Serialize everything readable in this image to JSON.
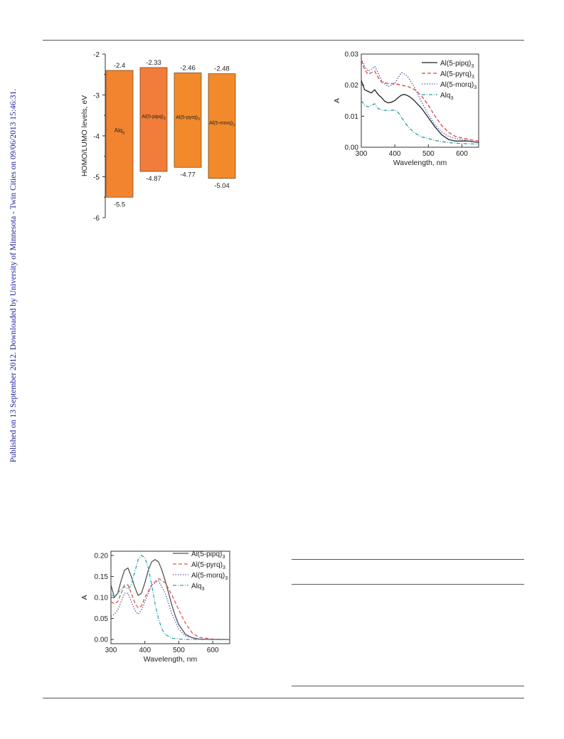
{
  "sidebar_text": "Published on 13 September 2012. Downloaded by University of Minnesota - Twin Cities on 09/06/2013 15:46:31.",
  "chart_data": [
    {
      "type": "bar",
      "ylabel": "HOMO/LUMO levels, eV",
      "ylim": [
        -6,
        -2
      ],
      "yticks": [
        "-2",
        "-3",
        "-4",
        "-5",
        "-6"
      ],
      "categories": [
        "Alq3",
        "Al(5-pipq)3",
        "Al(5-pyrq)3",
        "Al(5-morq)3"
      ],
      "bar_labels": [
        {
          "main": "Alq",
          "sub": "3"
        },
        {
          "main": "Al(5-pipq)",
          "sub": "3"
        },
        {
          "main": "Al(5-pyrq)",
          "sub": "3"
        },
        {
          "main": "Al(5-morq)",
          "sub": "3"
        }
      ],
      "lumo": [
        -2.4,
        -2.33,
        -2.46,
        -2.48
      ],
      "homo": [
        -5.5,
        -4.87,
        -4.77,
        -5.04
      ],
      "lumo_labels": [
        "-2.4",
        "-2.33",
        "-2.46",
        "-2.48"
      ],
      "homo_labels": [
        "-5.5",
        "-4.87",
        "-4.77",
        "-5.04"
      ],
      "colors": [
        "#f28430",
        "#f27d3a",
        "#f28a2c",
        "#f28a2c"
      ]
    },
    {
      "type": "line",
      "xlabel": "Wavelength, nm",
      "ylabel": "A",
      "xlim": [
        300,
        650
      ],
      "ylim": [
        0,
        0.03
      ],
      "xticks": [
        "300",
        "400",
        "500",
        "600"
      ],
      "yticks": [
        "0.00",
        "0.01",
        "0.02",
        "0.03"
      ],
      "legend_position": "top-right",
      "series": [
        {
          "name": "Al(5-pipq)",
          "sub": "3",
          "color": "#222222",
          "dash": "",
          "x": [
            300,
            310,
            320,
            330,
            340,
            350,
            360,
            370,
            380,
            390,
            400,
            410,
            420,
            430,
            440,
            450,
            460,
            480,
            500,
            520,
            540,
            560,
            580,
            600,
            620,
            650
          ],
          "y": [
            0.0215,
            0.0185,
            0.018,
            0.0175,
            0.0185,
            0.017,
            0.016,
            0.0148,
            0.0143,
            0.0145,
            0.015,
            0.016,
            0.0168,
            0.017,
            0.0165,
            0.0158,
            0.0148,
            0.0125,
            0.0095,
            0.0065,
            0.004,
            0.0025,
            0.002,
            0.002,
            0.002,
            0.0015
          ]
        },
        {
          "name": "Al(5-pyrq)",
          "sub": "3",
          "color": "#e0423a",
          "dash": "5,3",
          "x": [
            300,
            310,
            320,
            330,
            340,
            350,
            360,
            380,
            400,
            420,
            440,
            460,
            480,
            500,
            520,
            540,
            560,
            580,
            600,
            620,
            650
          ],
          "y": [
            0.028,
            0.025,
            0.0235,
            0.024,
            0.0245,
            0.0225,
            0.021,
            0.0205,
            0.0205,
            0.02,
            0.0195,
            0.0185,
            0.0165,
            0.0135,
            0.01,
            0.007,
            0.0048,
            0.0035,
            0.003,
            0.0025,
            0.002
          ]
        },
        {
          "name": "Al(5-morq)",
          "sub": "3",
          "color": "#5a58b0",
          "dash": "1.5,2",
          "x": [
            300,
            310,
            320,
            330,
            340,
            350,
            360,
            380,
            400,
            410,
            420,
            430,
            440,
            460,
            480,
            500,
            520,
            540,
            560,
            580,
            600,
            620,
            650
          ],
          "y": [
            0.0285,
            0.026,
            0.0245,
            0.025,
            0.026,
            0.024,
            0.0215,
            0.0195,
            0.0205,
            0.0225,
            0.024,
            0.0235,
            0.0225,
            0.019,
            0.0145,
            0.0105,
            0.0072,
            0.005,
            0.0035,
            0.0028,
            0.0025,
            0.002,
            0.0015
          ]
        },
        {
          "name": "Alq",
          "sub": "3",
          "color": "#2a9a9a",
          "dash": "5,2,1,2",
          "x": [
            300,
            310,
            320,
            330,
            340,
            350,
            360,
            380,
            400,
            410,
            420,
            440,
            460,
            480,
            500,
            520,
            540,
            560,
            600,
            650
          ],
          "y": [
            0.015,
            0.0135,
            0.013,
            0.0135,
            0.014,
            0.0125,
            0.012,
            0.0118,
            0.012,
            0.0112,
            0.0095,
            0.0065,
            0.0045,
            0.0033,
            0.0028,
            0.0022,
            0.0018,
            0.0015,
            0.0012,
            0.001
          ]
        }
      ]
    },
    {
      "type": "line",
      "xlabel": "Wavelength, nm",
      "ylabel": "A",
      "xlim": [
        300,
        650
      ],
      "ylim": [
        -0.01,
        0.21
      ],
      "xticks": [
        "300",
        "400",
        "500",
        "600"
      ],
      "yticks": [
        "0.00",
        "0.05",
        "0.10",
        "0.15",
        "0.20"
      ],
      "legend_position": "top-right",
      "series": [
        {
          "name": "Al(5-pipq)",
          "sub": "3",
          "color": "#555555",
          "dash": "",
          "x": [
            300,
            310,
            320,
            330,
            340,
            350,
            360,
            370,
            380,
            390,
            400,
            410,
            420,
            430,
            440,
            450,
            460,
            470,
            480,
            490,
            500,
            520,
            540,
            560,
            600,
            650
          ],
          "y": [
            0.13,
            0.1,
            0.11,
            0.14,
            0.165,
            0.17,
            0.15,
            0.125,
            0.105,
            0.11,
            0.135,
            0.165,
            0.185,
            0.19,
            0.185,
            0.165,
            0.14,
            0.11,
            0.08,
            0.055,
            0.035,
            0.012,
            0.004,
            0.001,
            0,
            0
          ]
        },
        {
          "name": "Al(5-pyrq)",
          "sub": "3",
          "color": "#e0584a",
          "dash": "5,3",
          "x": [
            300,
            310,
            320,
            330,
            340,
            350,
            360,
            370,
            380,
            390,
            400,
            420,
            440,
            460,
            480,
            500,
            520,
            540,
            560,
            600,
            650
          ],
          "y": [
            0.09,
            0.085,
            0.09,
            0.11,
            0.13,
            0.13,
            0.11,
            0.088,
            0.075,
            0.08,
            0.1,
            0.13,
            0.145,
            0.135,
            0.105,
            0.07,
            0.038,
            0.015,
            0.005,
            0.001,
            0
          ]
        },
        {
          "name": "Al(5-morq)",
          "sub": "3",
          "color": "#6a5aaa",
          "dash": "1.5,2",
          "x": [
            300,
            310,
            320,
            330,
            340,
            350,
            360,
            370,
            380,
            390,
            400,
            420,
            440,
            460,
            480,
            500,
            520,
            560,
            650
          ],
          "y": [
            0.055,
            0.06,
            0.07,
            0.09,
            0.11,
            0.11,
            0.09,
            0.07,
            0.06,
            0.07,
            0.09,
            0.13,
            0.14,
            0.11,
            0.06,
            0.025,
            0.008,
            0.001,
            0
          ]
        },
        {
          "name": "Alq",
          "sub": "3",
          "color": "#30a8a8",
          "dash": "5,2,1,2",
          "x": [
            300,
            310,
            320,
            330,
            340,
            350,
            360,
            370,
            380,
            390,
            400,
            410,
            420,
            430,
            440,
            450,
            460,
            480,
            500,
            540,
            650
          ],
          "y": [
            0.105,
            0.105,
            0.11,
            0.12,
            0.125,
            0.12,
            0.13,
            0.16,
            0.19,
            0.2,
            0.195,
            0.17,
            0.13,
            0.085,
            0.05,
            0.025,
            0.012,
            0.003,
            0.001,
            0,
            0
          ]
        }
      ]
    }
  ]
}
